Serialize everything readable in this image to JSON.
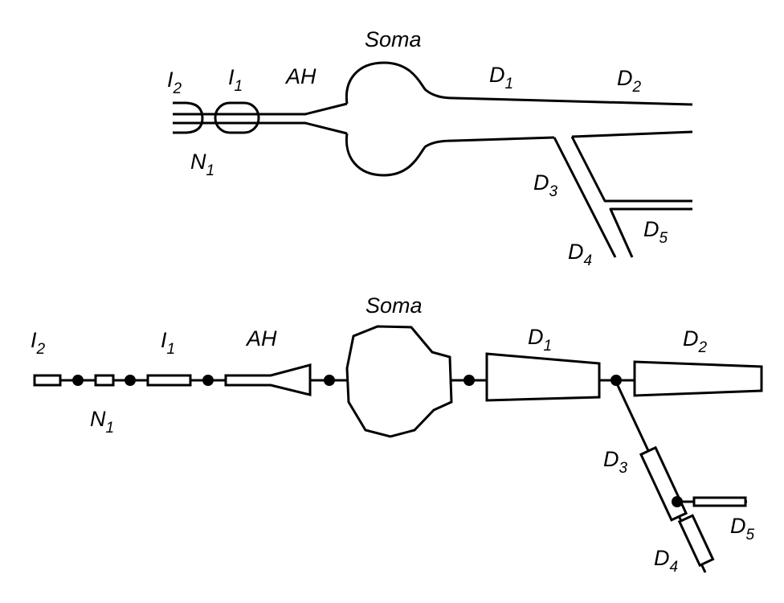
{
  "anatomical": {
    "soma": "Soma",
    "i2": {
      "base": "I",
      "sub": "2"
    },
    "i1": {
      "base": "I",
      "sub": "1"
    },
    "ah": "AH",
    "n1": {
      "base": "N",
      "sub": "1"
    },
    "d1": {
      "base": "D",
      "sub": "1"
    },
    "d2": {
      "base": "D",
      "sub": "2"
    },
    "d3": {
      "base": "D",
      "sub": "3"
    },
    "d4": {
      "base": "D",
      "sub": "4"
    },
    "d5": {
      "base": "D",
      "sub": "5"
    }
  },
  "compartmental": {
    "soma": "Soma",
    "i2": {
      "base": "I",
      "sub": "2"
    },
    "i1": {
      "base": "I",
      "sub": "1"
    },
    "ah": "AH",
    "n1": {
      "base": "N",
      "sub": "1"
    },
    "d1": {
      "base": "D",
      "sub": "1"
    },
    "d2": {
      "base": "D",
      "sub": "2"
    },
    "d3": {
      "base": "D",
      "sub": "3"
    },
    "d4": {
      "base": "D",
      "sub": "4"
    },
    "d5": {
      "base": "D",
      "sub": "5"
    }
  }
}
